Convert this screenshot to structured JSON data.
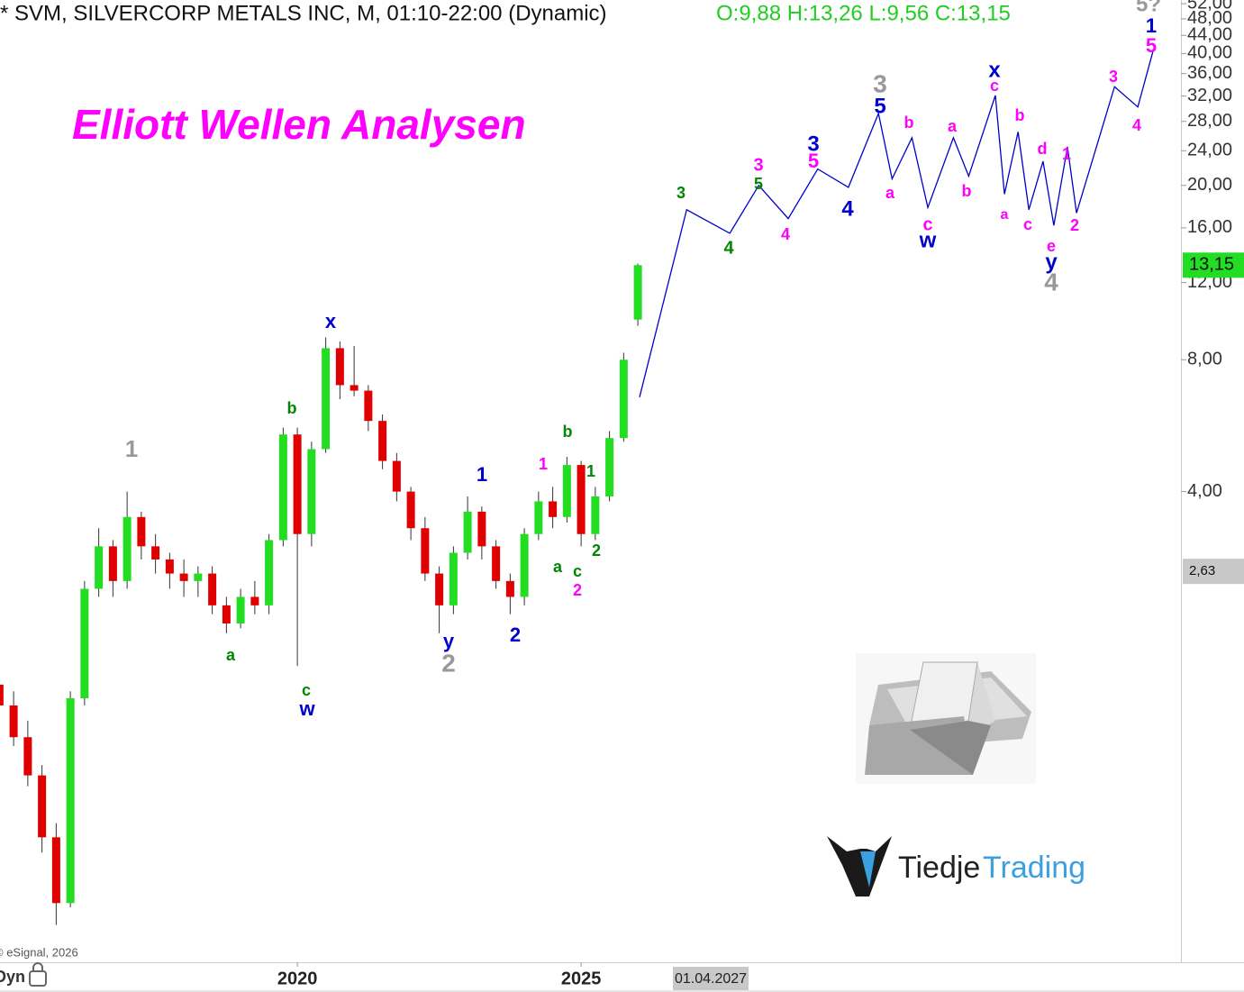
{
  "chart_data": {
    "type": "candlestick",
    "title": "* SVM, SILVERCORP METALS INC, M, 01:10-22:00 (Dynamic)",
    "ohlc_text": "O:9,88 H:13,26 L:9,56 C:13,15",
    "headline": "Elliott Wellen Analysen",
    "copyright": "© eSignal, 2026",
    "mode_label": "Dyn",
    "cursor_date": "01.04.2027",
    "logo": [
      "Tiedje",
      "Trading"
    ],
    "log_scale": true,
    "up_color": "#22dd22",
    "down_color": "#e00000",
    "xlim": [
      2014.76,
      2035.57
    ],
    "xticks": [
      2020,
      2025
    ],
    "ylim": [
      0.337,
      53
    ],
    "yticks": [
      {
        "value": 4,
        "label": "4,00"
      },
      {
        "value": 8,
        "label": "8,00"
      },
      {
        "value": 12,
        "label": "12,00"
      },
      {
        "value": 16,
        "label": "16,00"
      },
      {
        "value": 20,
        "label": "20,00"
      },
      {
        "value": 24,
        "label": "24,00"
      },
      {
        "value": 28,
        "label": "28,00"
      },
      {
        "value": 32,
        "label": "32,00"
      },
      {
        "value": 36,
        "label": "36,00"
      },
      {
        "value": 40,
        "label": "40,00"
      },
      {
        "value": 44,
        "label": "44,00"
      },
      {
        "value": 48,
        "label": "48,00"
      },
      {
        "value": 52,
        "label": "52,00"
      }
    ],
    "price_markers": [
      {
        "value": 13.15,
        "label": "13,15",
        "color": "#22dd22"
      },
      {
        "value": 2.63,
        "label": "2,63",
        "color": "#c8c8c8"
      }
    ],
    "candles": {
      "x": [
        2014.75,
        2015.0,
        2015.25,
        2015.5,
        2015.75,
        2016.0,
        2016.25,
        2016.5,
        2016.75,
        2017.0,
        2017.25,
        2017.5,
        2017.75,
        2018.0,
        2018.25,
        2018.5,
        2018.75,
        2019.0,
        2019.25,
        2019.5,
        2019.75,
        2020.0,
        2020.25,
        2020.5,
        2020.75,
        2021.0,
        2021.25,
        2021.5,
        2021.75,
        2022.0,
        2022.25,
        2022.5,
        2022.75,
        2023.0,
        2023.25,
        2023.5,
        2023.75,
        2024.0,
        2024.25,
        2024.5,
        2024.75,
        2025.0,
        2025.25,
        2025.5,
        2025.75,
        2026.0
      ],
      "open": [
        1.45,
        1.3,
        1.1,
        0.9,
        0.65,
        0.46,
        1.35,
        2.4,
        3.0,
        2.5,
        3.5,
        3.0,
        2.8,
        2.6,
        2.5,
        2.6,
        2.2,
        2.0,
        2.3,
        2.2,
        3.1,
        5.4,
        3.2,
        5.0,
        8.5,
        7.0,
        6.8,
        5.8,
        4.7,
        4.0,
        3.3,
        2.6,
        2.2,
        2.9,
        3.6,
        3.0,
        2.5,
        2.3,
        3.2,
        3.8,
        3.5,
        4.6,
        3.2,
        3.9,
        5.3,
        9.88
      ],
      "high": [
        1.55,
        1.4,
        1.2,
        0.95,
        0.7,
        1.4,
        2.5,
        3.3,
        3.1,
        4.0,
        3.6,
        3.2,
        2.9,
        2.8,
        2.7,
        2.7,
        2.3,
        2.4,
        2.5,
        3.2,
        5.6,
        5.6,
        5.2,
        9.0,
        8.8,
        8.6,
        7.0,
        6.0,
        4.9,
        4.1,
        3.5,
        2.7,
        3.0,
        3.9,
        3.7,
        3.1,
        2.6,
        3.3,
        4.0,
        4.1,
        4.8,
        4.7,
        4.1,
        5.5,
        8.3,
        13.26
      ],
      "low": [
        1.2,
        1.05,
        0.85,
        0.6,
        0.41,
        0.45,
        1.3,
        2.3,
        2.3,
        2.4,
        2.8,
        2.6,
        2.4,
        2.3,
        2.3,
        2.1,
        1.9,
        1.95,
        2.1,
        2.1,
        3.0,
        1.6,
        3.0,
        4.9,
        6.5,
        6.6,
        5.5,
        4.5,
        3.8,
        3.1,
        2.5,
        1.9,
        2.1,
        2.8,
        2.8,
        2.4,
        2.1,
        2.2,
        3.1,
        3.3,
        3.4,
        3.0,
        3.1,
        3.8,
        5.2,
        9.56
      ],
      "close": [
        1.3,
        1.1,
        0.9,
        0.65,
        0.46,
        1.35,
        2.4,
        3.0,
        2.5,
        3.5,
        3.0,
        2.8,
        2.6,
        2.5,
        2.6,
        2.2,
        2.0,
        2.3,
        2.2,
        3.1,
        5.4,
        3.2,
        5.0,
        8.5,
        7.0,
        6.8,
        5.8,
        4.7,
        4.0,
        3.3,
        2.6,
        2.2,
        2.9,
        3.6,
        3.0,
        2.5,
        2.3,
        3.2,
        3.8,
        3.5,
        4.6,
        3.2,
        3.9,
        5.3,
        8.0,
        13.15
      ]
    },
    "projection": {
      "color": "#0000cc",
      "x": [
        2026.03,
        2026.86,
        2027.62,
        2028.13,
        2028.65,
        2029.17,
        2029.71,
        2030.24,
        2030.48,
        2030.83,
        2031.11,
        2031.56,
        2031.83,
        2032.3,
        2032.46,
        2032.7,
        2032.89,
        2033.14,
        2033.33,
        2033.57,
        2033.73,
        2034.4,
        2034.81,
        2035.08
      ],
      "values": [
        6.57,
        17.6,
        15.55,
        20.0,
        16.8,
        21.8,
        19.8,
        29.2,
        20.7,
        25.7,
        17.8,
        25.7,
        21.0,
        32.1,
        19.1,
        26.5,
        17.6,
        22.7,
        16.2,
        24.5,
        17.3,
        33.6,
        30.2,
        40.6
      ]
    },
    "annotations": [
      {
        "text": "1",
        "color": "#999999"
      },
      {
        "text": "a",
        "color": "#008800"
      },
      {
        "text": "b",
        "color": "#008800"
      },
      {
        "text": "c",
        "color": "#008800"
      },
      {
        "text": "w",
        "color": "#0000cc"
      },
      {
        "text": "x",
        "color": "#0000cc"
      },
      {
        "text": "y",
        "color": "#0000cc"
      },
      {
        "text": "2",
        "color": "#999999"
      },
      {
        "text": "1",
        "color": "#0000cc"
      },
      {
        "text": "2",
        "color": "#0000cc"
      },
      {
        "text": "1",
        "color": "#ff00ff"
      },
      {
        "text": "b",
        "color": "#008800"
      },
      {
        "text": "a",
        "color": "#008800"
      },
      {
        "text": "c",
        "color": "#008800"
      },
      {
        "text": "2",
        "color": "#ff00ff"
      },
      {
        "text": "1",
        "color": "#008800"
      },
      {
        "text": "2",
        "color": "#008800"
      },
      {
        "text": "3",
        "color": "#008800"
      },
      {
        "text": "4",
        "color": "#008800"
      },
      {
        "text": "3",
        "color": "#ff00ff"
      },
      {
        "text": "5",
        "color": "#008800"
      },
      {
        "text": "4",
        "color": "#ff00ff"
      },
      {
        "text": "3",
        "color": "#0000cc"
      },
      {
        "text": "5",
        "color": "#ff00ff"
      },
      {
        "text": "4",
        "color": "#0000cc"
      },
      {
        "text": "3",
        "color": "#999999"
      },
      {
        "text": "5",
        "color": "#0000cc"
      },
      {
        "text": "a",
        "color": "#ff00ff"
      },
      {
        "text": "b",
        "color": "#ff00ff"
      },
      {
        "text": "c",
        "color": "#ff00ff"
      },
      {
        "text": "w",
        "color": "#0000cc"
      },
      {
        "text": "a",
        "color": "#ff00ff"
      },
      {
        "text": "b",
        "color": "#ff00ff"
      },
      {
        "text": "x",
        "color": "#0000cc"
      },
      {
        "text": "c",
        "color": "#ff00ff"
      },
      {
        "text": "b",
        "color": "#ff00ff"
      },
      {
        "text": "d",
        "color": "#ff00ff"
      },
      {
        "text": "a",
        "color": "#ff00ff"
      },
      {
        "text": "c",
        "color": "#ff00ff"
      },
      {
        "text": "e",
        "color": "#ff00ff"
      },
      {
        "text": "y",
        "color": "#0000cc"
      },
      {
        "text": "4",
        "color": "#999999"
      },
      {
        "text": "1",
        "color": "#ff00ff"
      },
      {
        "text": "2",
        "color": "#ff00ff"
      },
      {
        "text": "3",
        "color": "#ff00ff"
      },
      {
        "text": "4",
        "color": "#ff00ff"
      },
      {
        "text": "5?",
        "color": "#999999"
      },
      {
        "text": "1",
        "color": "#0000cc"
      },
      {
        "text": "5",
        "color": "#ff00ff"
      }
    ]
  }
}
